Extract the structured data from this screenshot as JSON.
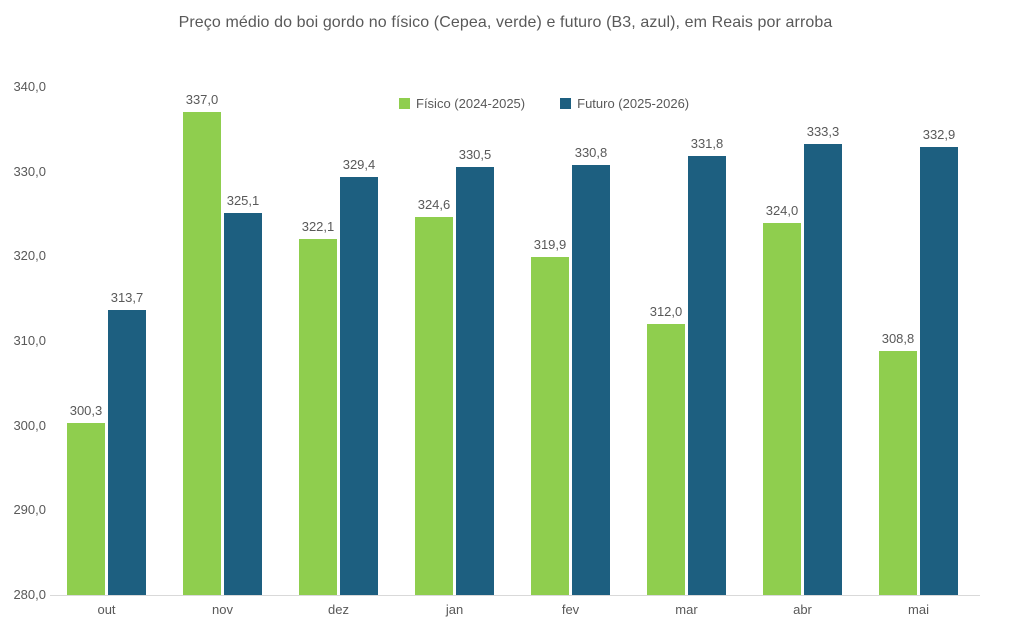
{
  "title": "Preço médio do boi gordo no físico (Cepea, verde) e futuro (B3, azul), em Reais por arroba",
  "colors": {
    "fisico_green": "#8FCE4E",
    "futuro_blue": "#1D5F80",
    "title_text": "#595959",
    "axis_text": "#595959",
    "data_label_text": "#595959",
    "axis_line": "#d9d9d9",
    "background": "#ffffff"
  },
  "chart_data": {
    "type": "bar",
    "title": "Preço médio do boi gordo no físico (Cepea, verde) e futuro (B3, azul), em Reais por arroba",
    "categories": [
      "out",
      "nov",
      "dez",
      "jan",
      "fev",
      "mar",
      "abr",
      "mai"
    ],
    "series": [
      {
        "key": "fisico",
        "name": "Físico (2024-2025)",
        "color": "#8FCE4E",
        "values": [
          300.3,
          337.0,
          322.1,
          324.6,
          319.9,
          312.0,
          324.0,
          308.8
        ],
        "labels": [
          "300,3",
          "337,0",
          "322,1",
          "324,6",
          "319,9",
          "312,0",
          "324,0",
          "308,8"
        ]
      },
      {
        "key": "futuro",
        "name": "Futuro (2025-2026)",
        "color": "#1D5F80",
        "values": [
          313.7,
          325.1,
          329.4,
          330.5,
          330.8,
          331.8,
          333.3,
          332.9
        ],
        "labels": [
          "313,7",
          "325,1",
          "329,4",
          "330,5",
          "330,8",
          "331,8",
          "333,3",
          "332,9"
        ]
      }
    ],
    "xlabel": "",
    "ylabel": "",
    "ylim": [
      280,
      340
    ],
    "ytick_step": 10,
    "ytick_labels": [
      "280,0",
      "290,0",
      "300,0",
      "310,0",
      "320,0",
      "330,0",
      "340,0"
    ],
    "grid": false,
    "legend_position": "top",
    "data_labels": true
  }
}
